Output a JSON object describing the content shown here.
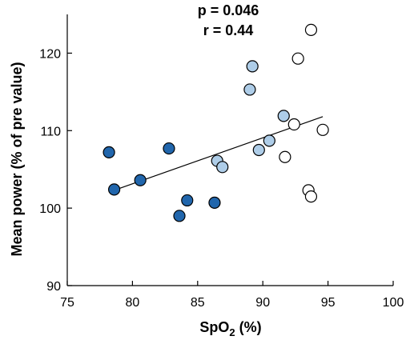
{
  "chart_data": {
    "type": "scatter",
    "annotations": [
      "p = 0.046",
      "r = 0.44"
    ],
    "xlabel": {
      "main": "SpO",
      "subscript": "2",
      "suffix": " (%)"
    },
    "ylabel": "Mean power (% of pre value)",
    "xlim": [
      75,
      100
    ],
    "ylim": [
      90,
      125
    ],
    "xticks": [
      "75",
      "80",
      "85",
      "90",
      "95",
      "100"
    ],
    "yticks": [
      "90",
      "100",
      "110",
      "120"
    ],
    "grid": false,
    "legend": "none",
    "colors": {
      "dark_group": "#2166ac",
      "light_group": "#aecde8",
      "white_group": "#ffffff",
      "marker_edge": "#000000",
      "trendline": "#000000"
    },
    "series": [
      {
        "color": "#2166ac",
        "x": [
          78.2,
          78.6,
          80.6,
          82.8,
          84.2,
          83.6,
          86.3
        ],
        "y": [
          107.2,
          102.4,
          103.6,
          107.7,
          101.0,
          99.0,
          100.7
        ]
      },
      {
        "color": "#aecde8",
        "x": [
          86.5,
          86.9,
          89.0,
          89.2,
          89.7,
          90.5,
          91.6
        ],
        "y": [
          106.1,
          105.3,
          115.3,
          118.3,
          107.5,
          108.7,
          111.9
        ]
      },
      {
        "color": "#ffffff",
        "x": [
          91.7,
          92.4,
          92.7,
          93.5,
          93.7,
          93.7,
          94.6
        ],
        "y": [
          106.6,
          110.8,
          119.3,
          102.3,
          101.5,
          123.0,
          110.1
        ]
      }
    ],
    "trendline": {
      "x": [
        78.6,
        94.6
      ],
      "y": [
        102.3,
        111.8
      ]
    }
  }
}
